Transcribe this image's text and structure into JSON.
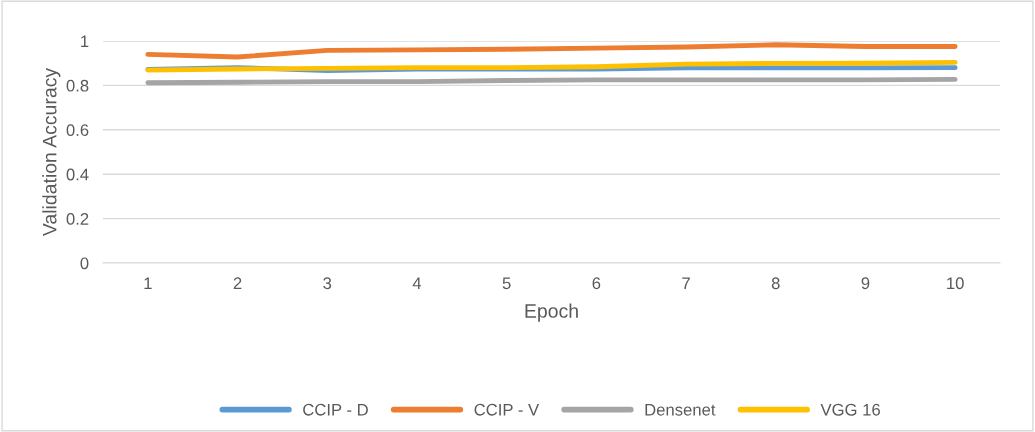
{
  "chart_data": {
    "type": "line",
    "xlabel": "Epoch",
    "ylabel": "Validation Accuracy",
    "categories": [
      "1",
      "2",
      "3",
      "4",
      "5",
      "6",
      "7",
      "8",
      "9",
      "10"
    ],
    "series": [
      {
        "name": "CCIP - D",
        "color": "#5b9bd5",
        "values": [
          0.872,
          0.88,
          0.867,
          0.874,
          0.874,
          0.874,
          0.879,
          0.879,
          0.879,
          0.88
        ]
      },
      {
        "name": "CCIP - V",
        "color": "#ed7d31",
        "values": [
          0.94,
          0.928,
          0.958,
          0.96,
          0.963,
          0.968,
          0.973,
          0.983,
          0.975,
          0.975
        ]
      },
      {
        "name": "Densenet",
        "color": "#a5a5a5",
        "values": [
          0.812,
          0.814,
          0.817,
          0.817,
          0.822,
          0.825,
          0.825,
          0.825,
          0.825,
          0.827
        ]
      },
      {
        "name": "VGG 16",
        "color": "#ffc000",
        "values": [
          0.869,
          0.874,
          0.877,
          0.88,
          0.88,
          0.884,
          0.896,
          0.899,
          0.9,
          0.904
        ]
      }
    ],
    "ylim": [
      0,
      1
    ],
    "yticks": [
      0,
      {
        "value": 0.2,
        "label": "0.2"
      },
      {
        "value": 0.4,
        "label": "0.4"
      },
      {
        "value": 0.6,
        "label": "0.6"
      },
      {
        "value": 0.8,
        "label": "0.8"
      },
      1
    ],
    "grid": "y",
    "legend": "bottom",
    "marker": "none",
    "line_style": "solid"
  }
}
